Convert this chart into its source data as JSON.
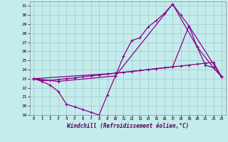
{
  "xlabel": "Windchill (Refroidissement éolien,°C)",
  "bg_color": "#c5eced",
  "grid_color": "#a0c8c8",
  "line_color": "#880088",
  "xlim": [
    -0.5,
    23.5
  ],
  "ylim": [
    19,
    31.5
  ],
  "yticks": [
    19,
    20,
    21,
    22,
    23,
    24,
    25,
    26,
    27,
    28,
    29,
    30,
    31
  ],
  "xticks": [
    0,
    1,
    2,
    3,
    4,
    5,
    6,
    7,
    8,
    9,
    10,
    11,
    12,
    13,
    14,
    15,
    16,
    17,
    18,
    19,
    20,
    21,
    22,
    23
  ],
  "line1_x": [
    0,
    1,
    2,
    3,
    4,
    5,
    6,
    7,
    8,
    9,
    10,
    11,
    12,
    13,
    14,
    15,
    16,
    17,
    18,
    19,
    20,
    21,
    22,
    23
  ],
  "line1_y": [
    23.0,
    22.8,
    22.8,
    22.9,
    23.0,
    23.1,
    23.2,
    23.3,
    23.4,
    23.5,
    23.6,
    23.7,
    23.8,
    23.9,
    24.0,
    24.1,
    24.2,
    24.3,
    24.4,
    24.5,
    24.6,
    24.7,
    24.8,
    23.2
  ],
  "line2_x": [
    0,
    1,
    2,
    3,
    4,
    5,
    6,
    7,
    8,
    9,
    10,
    11,
    12,
    13,
    14,
    15,
    16,
    17,
    18,
    19,
    20,
    21,
    22,
    23
  ],
  "line2_y": [
    23.0,
    22.7,
    22.3,
    21.6,
    20.2,
    19.9,
    19.6,
    19.3,
    19.0,
    21.2,
    23.3,
    25.5,
    27.2,
    27.5,
    28.7,
    29.4,
    30.2,
    31.2,
    30.0,
    28.8,
    26.5,
    24.5,
    24.2,
    23.2
  ],
  "line3_x": [
    0,
    3,
    10,
    17,
    20,
    22,
    23
  ],
  "line3_y": [
    23.0,
    22.7,
    23.3,
    31.2,
    26.5,
    24.2,
    23.2
  ],
  "line4_x": [
    0,
    10,
    17,
    19,
    23
  ],
  "line4_y": [
    23.0,
    23.6,
    24.3,
    28.8,
    23.2
  ]
}
